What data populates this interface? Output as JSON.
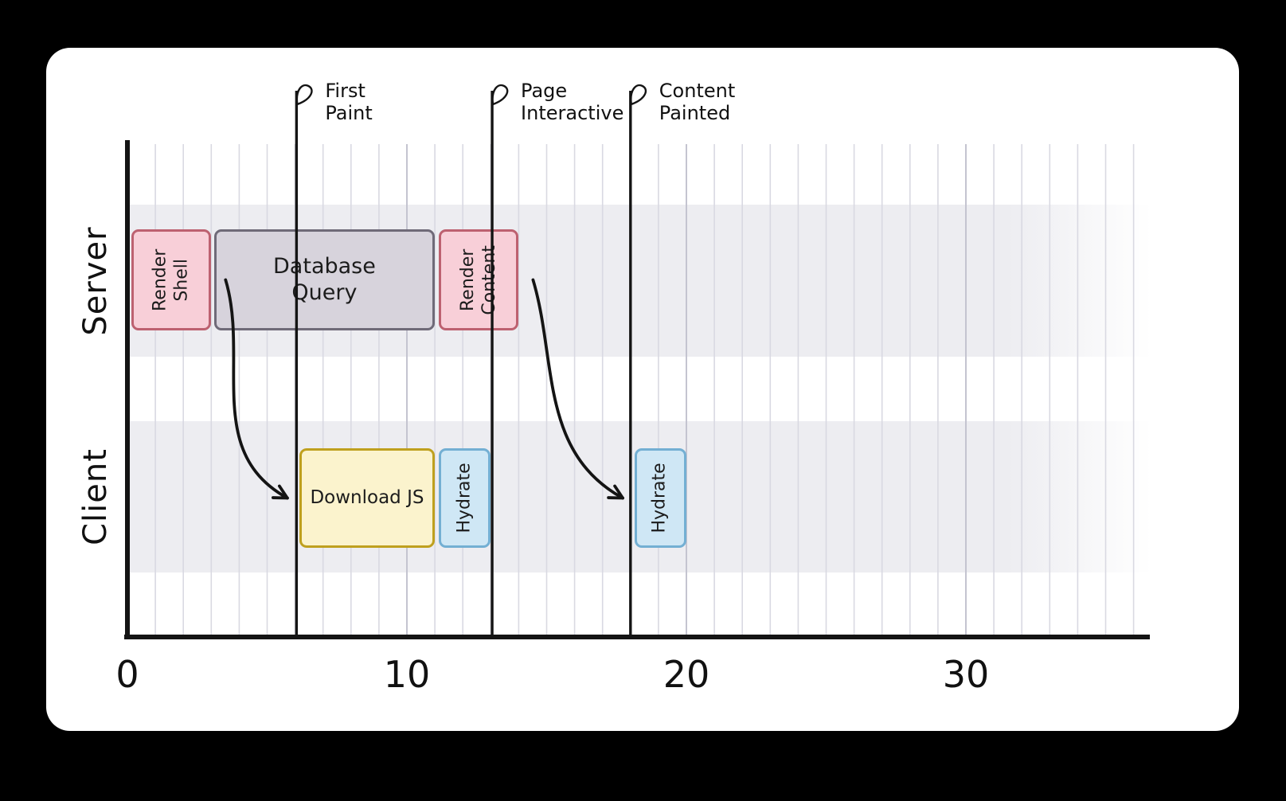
{
  "meta": {
    "background_color": "#000000",
    "card_color": "#ffffff"
  },
  "chart_data": {
    "type": "timeline",
    "title": "",
    "x_axis": {
      "ticks": [
        0,
        10,
        20,
        30
      ],
      "max": 36.5,
      "unit": "time"
    },
    "rows": [
      {
        "label": "Server"
      },
      {
        "label": "Client"
      }
    ],
    "tasks": [
      {
        "id": "render-shell",
        "label": "Render Shell",
        "lines": [
          "Render",
          "Shell"
        ],
        "row": 0,
        "start": 0.15,
        "end": 3,
        "palette": "pink",
        "vertical": true
      },
      {
        "id": "database-query",
        "label": "Database Query",
        "lines": [
          "Database",
          "Query"
        ],
        "row": 0,
        "start": 3.1,
        "end": 11,
        "palette": "gray",
        "vertical": false
      },
      {
        "id": "render-content",
        "label": "Render Content",
        "lines": [
          "Render",
          "Content"
        ],
        "row": 0,
        "start": 11.15,
        "end": 14,
        "palette": "pink",
        "vertical": true
      },
      {
        "id": "download-js",
        "label": "Download JS",
        "lines": [
          "Download JS"
        ],
        "row": 1,
        "start": 6.15,
        "end": 11,
        "palette": "yellow",
        "vertical": false
      },
      {
        "id": "hydrate-1",
        "label": "Hydrate",
        "lines": [
          "Hydrate"
        ],
        "row": 1,
        "start": 11.15,
        "end": 13,
        "palette": "blue",
        "vertical": true
      },
      {
        "id": "hydrate-2",
        "label": "Hydrate",
        "lines": [
          "Hydrate"
        ],
        "row": 1,
        "start": 18.15,
        "end": 20,
        "palette": "blue",
        "vertical": true
      }
    ],
    "milestones": [
      {
        "id": "first-paint",
        "label": "First Paint",
        "lines": [
          "First",
          "Paint"
        ],
        "time": 6.05
      },
      {
        "id": "page-interactive",
        "label": "Page Interactive",
        "lines": [
          "Page",
          "Interactive"
        ],
        "time": 13.05
      },
      {
        "id": "content-painted",
        "label": "Content Painted",
        "lines": [
          "Content",
          "Painted"
        ],
        "time": 18.0
      }
    ],
    "arrows": [
      {
        "from": "render-shell",
        "to": "download-js"
      },
      {
        "from": "render-content",
        "to": "hydrate-2"
      }
    ],
    "palette": {
      "pink": {
        "fill": "#f8cfd8",
        "stroke": "#bd6170"
      },
      "gray": {
        "fill": "#d7d3dc",
        "stroke": "#6f6a78"
      },
      "yellow": {
        "fill": "#fbf3cd",
        "stroke": "#bfa01e"
      },
      "blue": {
        "fill": "#cfe7f5",
        "stroke": "#73afd3"
      },
      "band": "#ededf1",
      "grid_minor": "#d9d9e2",
      "grid_major": "#c4c4d0",
      "axis": "#141414"
    }
  }
}
